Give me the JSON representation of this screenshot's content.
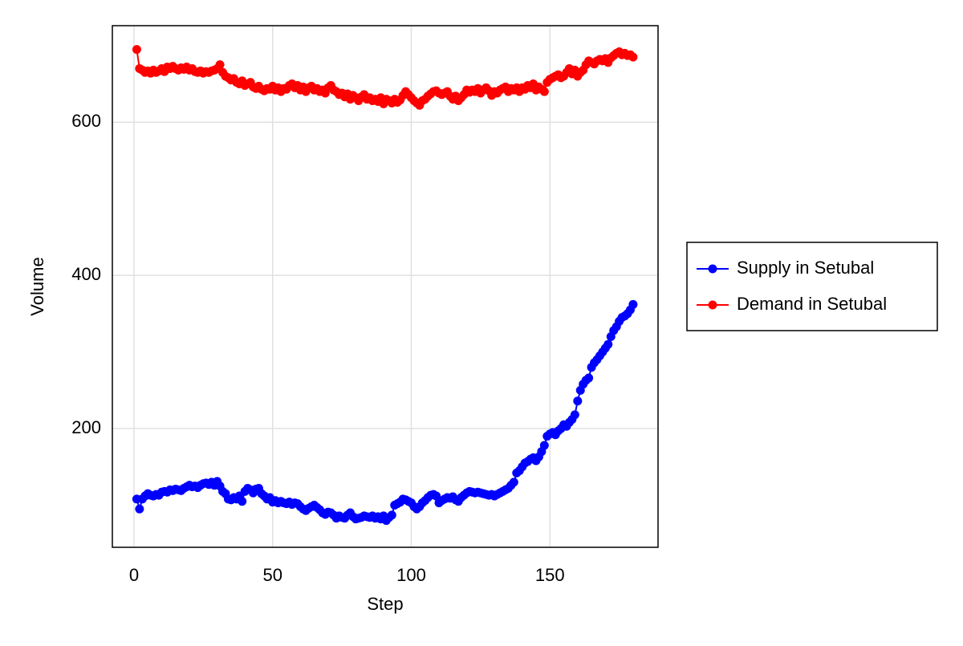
{
  "chart_data": {
    "type": "line",
    "xlabel": "Step",
    "ylabel": "Volume",
    "x": [
      1,
      2,
      3,
      4,
      5,
      6,
      7,
      8,
      9,
      10,
      11,
      12,
      13,
      14,
      15,
      16,
      17,
      18,
      19,
      20,
      21,
      22,
      23,
      24,
      25,
      26,
      27,
      28,
      29,
      30,
      31,
      32,
      33,
      34,
      35,
      36,
      37,
      38,
      39,
      40,
      41,
      42,
      43,
      44,
      45,
      46,
      47,
      48,
      49,
      50,
      51,
      52,
      53,
      54,
      55,
      56,
      57,
      58,
      59,
      60,
      61,
      62,
      63,
      64,
      65,
      66,
      67,
      68,
      69,
      70,
      71,
      72,
      73,
      74,
      75,
      76,
      77,
      78,
      79,
      80,
      81,
      82,
      83,
      84,
      85,
      86,
      87,
      88,
      89,
      90,
      91,
      92,
      93,
      94,
      95,
      96,
      97,
      98,
      99,
      100,
      101,
      102,
      103,
      104,
      105,
      106,
      107,
      108,
      109,
      110,
      111,
      112,
      113,
      114,
      115,
      116,
      117,
      118,
      119,
      120,
      121,
      122,
      123,
      124,
      125,
      126,
      127,
      128,
      129,
      130,
      131,
      132,
      133,
      134,
      135,
      136,
      137,
      138,
      139,
      140,
      141,
      142,
      143,
      144,
      145,
      146,
      147,
      148,
      149,
      150,
      151,
      152,
      153,
      154,
      155,
      156,
      157,
      158,
      159,
      160,
      161,
      162,
      163,
      164,
      165,
      166,
      167,
      168,
      169,
      170,
      171,
      172,
      173,
      174,
      175,
      176,
      177,
      178,
      179,
      180
    ],
    "series": [
      {
        "name": "Supply in Setubal",
        "color": "#0000ff",
        "values": [
          108,
          95,
          108,
          112,
          115,
          113,
          112,
          114,
          113,
          117,
          118,
          117,
          120,
          119,
          121,
          120,
          119,
          122,
          124,
          126,
          124,
          125,
          123,
          126,
          128,
          129,
          127,
          130,
          126,
          131,
          125,
          118,
          115,
          108,
          107,
          110,
          108,
          112,
          105,
          118,
          122,
          120,
          116,
          121,
          122,
          115,
          112,
          108,
          110,
          104,
          106,
          103,
          105,
          103,
          102,
          104,
          101,
          103,
          102,
          98,
          95,
          93,
          96,
          98,
          100,
          97,
          94,
          90,
          88,
          91,
          90,
          87,
          83,
          86,
          84,
          83,
          87,
          90,
          85,
          82,
          83,
          84,
          86,
          85,
          84,
          86,
          83,
          85,
          82,
          86,
          80,
          84,
          87,
          100,
          102,
          104,
          108,
          107,
          105,
          103,
          98,
          95,
          98,
          103,
          106,
          110,
          113,
          114,
          112,
          103,
          106,
          108,
          110,
          109,
          111,
          107,
          105,
          110,
          113,
          116,
          118,
          117,
          116,
          117,
          116,
          115,
          114,
          113,
          114,
          112,
          114,
          116,
          118,
          120,
          122,
          126,
          130,
          142,
          145,
          150,
          155,
          157,
          160,
          162,
          158,
          163,
          170,
          178,
          190,
          193,
          195,
          192,
          197,
          200,
          205,
          203,
          208,
          212,
          218,
          236,
          250,
          258,
          263,
          266,
          280,
          286,
          290,
          295,
          300,
          305,
          310,
          320,
          328,
          333,
          340,
          345,
          347,
          350,
          355,
          362
        ]
      },
      {
        "name": "Demand in Setubal",
        "color": "#ff0000",
        "values": [
          695,
          670,
          668,
          665,
          667,
          664,
          668,
          665,
          667,
          670,
          666,
          672,
          670,
          673,
          670,
          668,
          671,
          669,
          672,
          668,
          670,
          666,
          665,
          667,
          664,
          666,
          665,
          667,
          668,
          670,
          675,
          665,
          660,
          658,
          655,
          657,
          652,
          650,
          654,
          648,
          650,
          652,
          646,
          644,
          647,
          643,
          641,
          644,
          643,
          647,
          642,
          645,
          640,
          644,
          643,
          648,
          650,
          645,
          648,
          642,
          646,
          640,
          645,
          647,
          642,
          644,
          640,
          642,
          638,
          645,
          648,
          642,
          640,
          636,
          638,
          633,
          637,
          630,
          635,
          632,
          628,
          633,
          636,
          630,
          632,
          628,
          630,
          627,
          632,
          624,
          630,
          628,
          625,
          630,
          626,
          629,
          635,
          640,
          636,
          632,
          628,
          625,
          622,
          628,
          630,
          634,
          637,
          640,
          641,
          638,
          636,
          638,
          640,
          634,
          630,
          634,
          628,
          632,
          636,
          642,
          639,
          642,
          640,
          644,
          638,
          642,
          645,
          641,
          635,
          640,
          638,
          642,
          644,
          646,
          640,
          644,
          642,
          645,
          640,
          645,
          643,
          648,
          645,
          650,
          642,
          646,
          643,
          640,
          652,
          656,
          658,
          660,
          662,
          658,
          660,
          665,
          670,
          663,
          668,
          660,
          665,
          668,
          675,
          680,
          678,
          676,
          680,
          682,
          680,
          683,
          678,
          684,
          687,
          690,
          692,
          688,
          690,
          687,
          688,
          685
        ]
      }
    ],
    "xlim": [
      -7.8,
      189
    ],
    "ylim": [
      45,
      726
    ],
    "xticks": [
      0,
      50,
      100,
      150
    ],
    "yticks": [
      200,
      400,
      600
    ],
    "grid": true,
    "legend": "right"
  }
}
